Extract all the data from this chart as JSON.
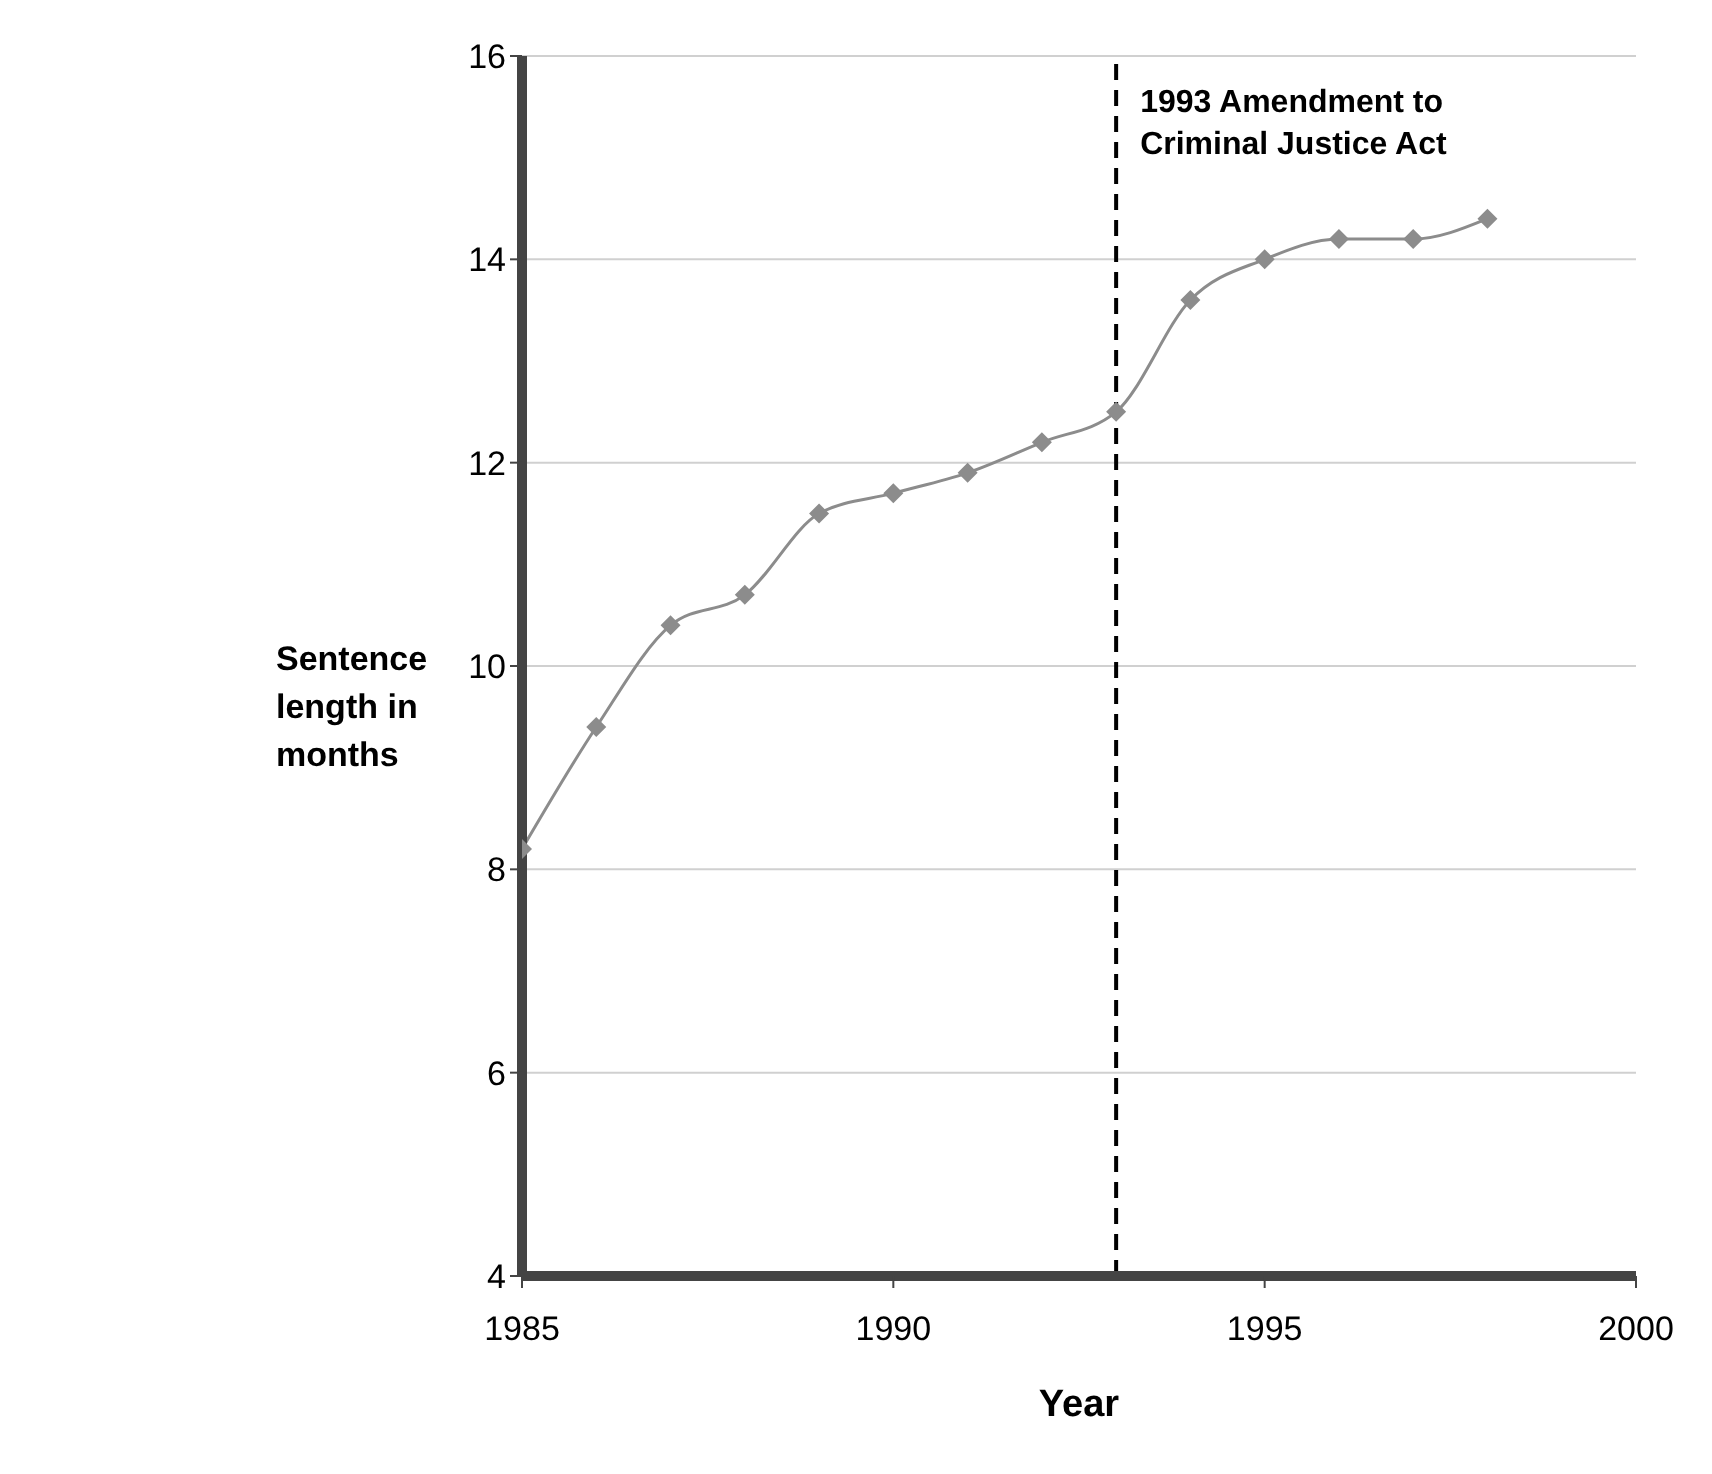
{
  "chart_data": {
    "type": "line",
    "xlabel": "Year",
    "ylabel": "Sentence length in months",
    "x": [
      1985,
      1986,
      1987,
      1988,
      1989,
      1990,
      1991,
      1992,
      1993,
      1994,
      1995,
      1996,
      1997,
      1998
    ],
    "series": [
      {
        "color": "#8c8c8c",
        "values": [
          8.2,
          9.4,
          10.4,
          10.7,
          11.5,
          11.7,
          11.9,
          12.2,
          12.5,
          13.6,
          14.0,
          14.2,
          14.2,
          14.4
        ]
      }
    ],
    "xlim": [
      1985,
      2000
    ],
    "xticks": [
      1985,
      1990,
      1995,
      2000
    ],
    "ylim": [
      4,
      16
    ],
    "yticks": [
      4,
      6,
      8,
      10,
      12,
      14,
      16
    ],
    "ref_lines": [
      {
        "axis": "x",
        "value": 1993,
        "label": "1993 Amendment to Criminal Justice Act",
        "color": "#000000",
        "line_style": "dashed"
      }
    ],
    "grid": "y",
    "legend": false,
    "marker": "diamond",
    "line_style": "solid"
  }
}
